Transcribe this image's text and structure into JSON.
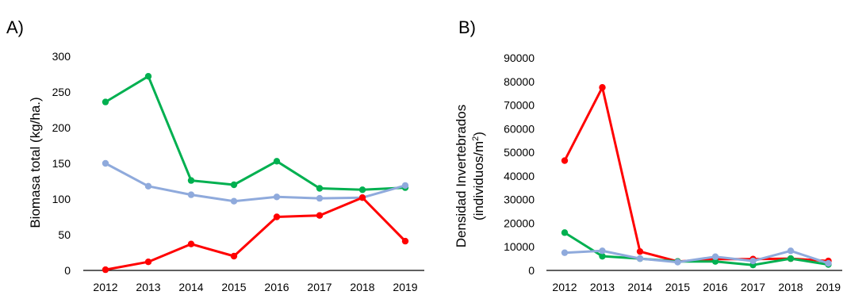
{
  "chart_data": [
    {
      "type": "line",
      "panel_label": "A)",
      "ylabel": "Biomasa total (kg/ha.)",
      "ylim": [
        0,
        300
      ],
      "yticks": [
        0,
        50,
        100,
        150,
        200,
        250,
        300
      ],
      "x": [
        "2012",
        "2013",
        "2014",
        "2015",
        "2016",
        "2017",
        "2018",
        "2019"
      ],
      "grid": false,
      "series": [
        {
          "color": "#00b050",
          "values": [
            236,
            272,
            126,
            120,
            153,
            115,
            113,
            116
          ]
        },
        {
          "color": "#8faadc",
          "values": [
            150,
            118,
            106,
            97,
            103,
            101,
            102,
            119
          ]
        },
        {
          "color": "#ff0000",
          "values": [
            1,
            12,
            37,
            20,
            75,
            77,
            102,
            41
          ]
        }
      ]
    },
    {
      "type": "line",
      "panel_label": "B)",
      "ylabel_lines": [
        "Densidad Invertebrados",
        "(individuos/m",
        "2",
        ")"
      ],
      "ylim": [
        0,
        90000
      ],
      "yticks": [
        0,
        10000,
        20000,
        30000,
        40000,
        50000,
        60000,
        70000,
        80000,
        90000
      ],
      "x": [
        "2012",
        "2013",
        "2014",
        "2015",
        "2016",
        "2017",
        "2018",
        "2019"
      ],
      "grid": false,
      "series": [
        {
          "color": "#ff0000",
          "values": [
            46500,
            77500,
            8000,
            3800,
            4800,
            4800,
            5000,
            4000
          ]
        },
        {
          "color": "#00b050",
          "values": [
            16000,
            6000,
            5000,
            3800,
            3800,
            2300,
            5000,
            2500
          ]
        },
        {
          "color": "#8faadc",
          "values": [
            7500,
            8300,
            5000,
            3500,
            5800,
            4000,
            8300,
            3000
          ]
        }
      ]
    }
  ]
}
